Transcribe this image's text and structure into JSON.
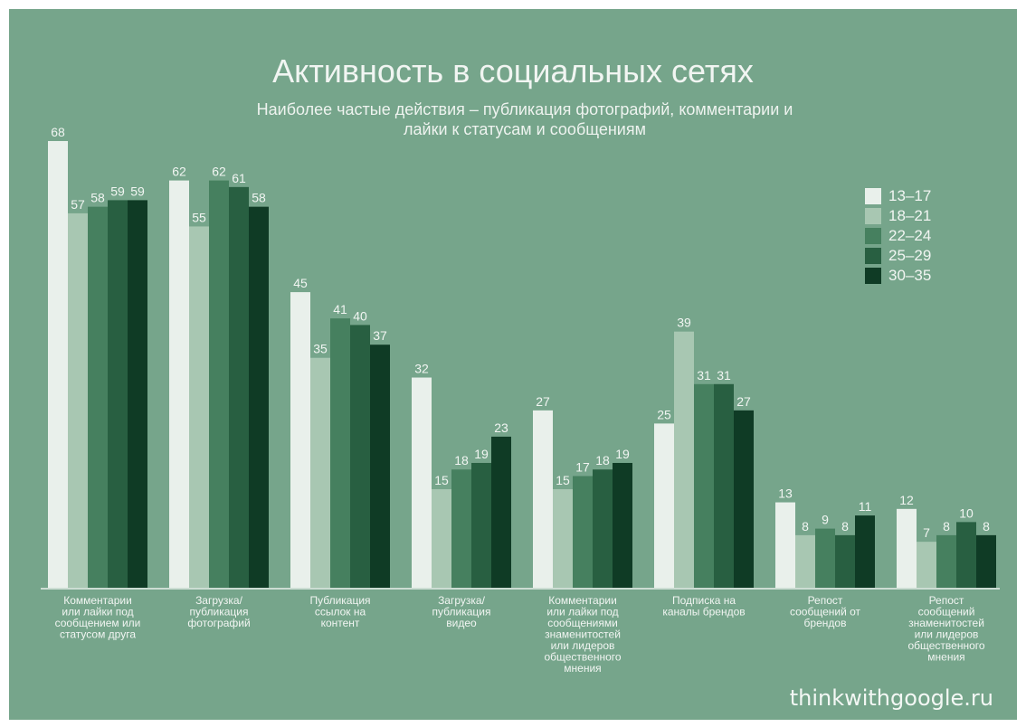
{
  "chart_data": {
    "type": "bar",
    "title": "Активность в социальных сетях",
    "subtitle": "Наиболее частые действия – публикация фотографий, комментарии и лайки к статусам и сообщениям",
    "categories": [
      "Комментарии или лайки под сообщением или статусом друга",
      "Загрузка/ публикация фотографий",
      "Публикация ссылок на контент",
      "Загрузка/ публикация видео",
      "Комментарии или лайки под сообщениями знаменитостей или лидеров общественного мнения",
      "Подписка на каналы брендов",
      "Репост сообщений от брендов",
      "Репост сообщений знаменитостей или лидеров общественного мнения"
    ],
    "category_lines": [
      [
        "Комментарии",
        "или лайки под",
        "сообщением или",
        "статусом друга"
      ],
      [
        "Загрузка/",
        "публикация",
        "фотографий"
      ],
      [
        "Публикация",
        "ссылок на",
        "контент"
      ],
      [
        "Загрузка/",
        "публикация",
        "видео"
      ],
      [
        "Комментарии",
        "или лайки под",
        "сообщениями",
        "знаменитостей",
        "или лидеров",
        "общественного",
        "мнения"
      ],
      [
        "Подписка на",
        "каналы брендов"
      ],
      [
        "Репост",
        "сообщений от",
        "брендов"
      ],
      [
        "Репост",
        "сообщений",
        "знаменитостей",
        "или лидеров",
        "общественного",
        "мнения"
      ]
    ],
    "series": [
      {
        "name": "13–17",
        "color": "#e9f0eb",
        "values": [
          68,
          62,
          45,
          32,
          27,
          25,
          13,
          12
        ]
      },
      {
        "name": "18–21",
        "color": "#a8c7b2",
        "values": [
          57,
          55,
          35,
          15,
          15,
          39,
          8,
          7
        ]
      },
      {
        "name": "22–24",
        "color": "#46805f",
        "values": [
          58,
          62,
          41,
          18,
          17,
          31,
          9,
          8
        ]
      },
      {
        "name": "25–29",
        "color": "#285f41",
        "values": [
          59,
          61,
          40,
          19,
          18,
          31,
          8,
          10
        ]
      },
      {
        "name": "30–35",
        "color": "#0f3b25",
        "values": [
          59,
          58,
          37,
          23,
          19,
          27,
          11,
          8
        ]
      }
    ],
    "ylim": [
      0,
      68
    ],
    "xlabel": "",
    "ylabel": "",
    "grid": false,
    "legend_position": "top-right"
  },
  "source": "thinkwithgoogle.ru"
}
